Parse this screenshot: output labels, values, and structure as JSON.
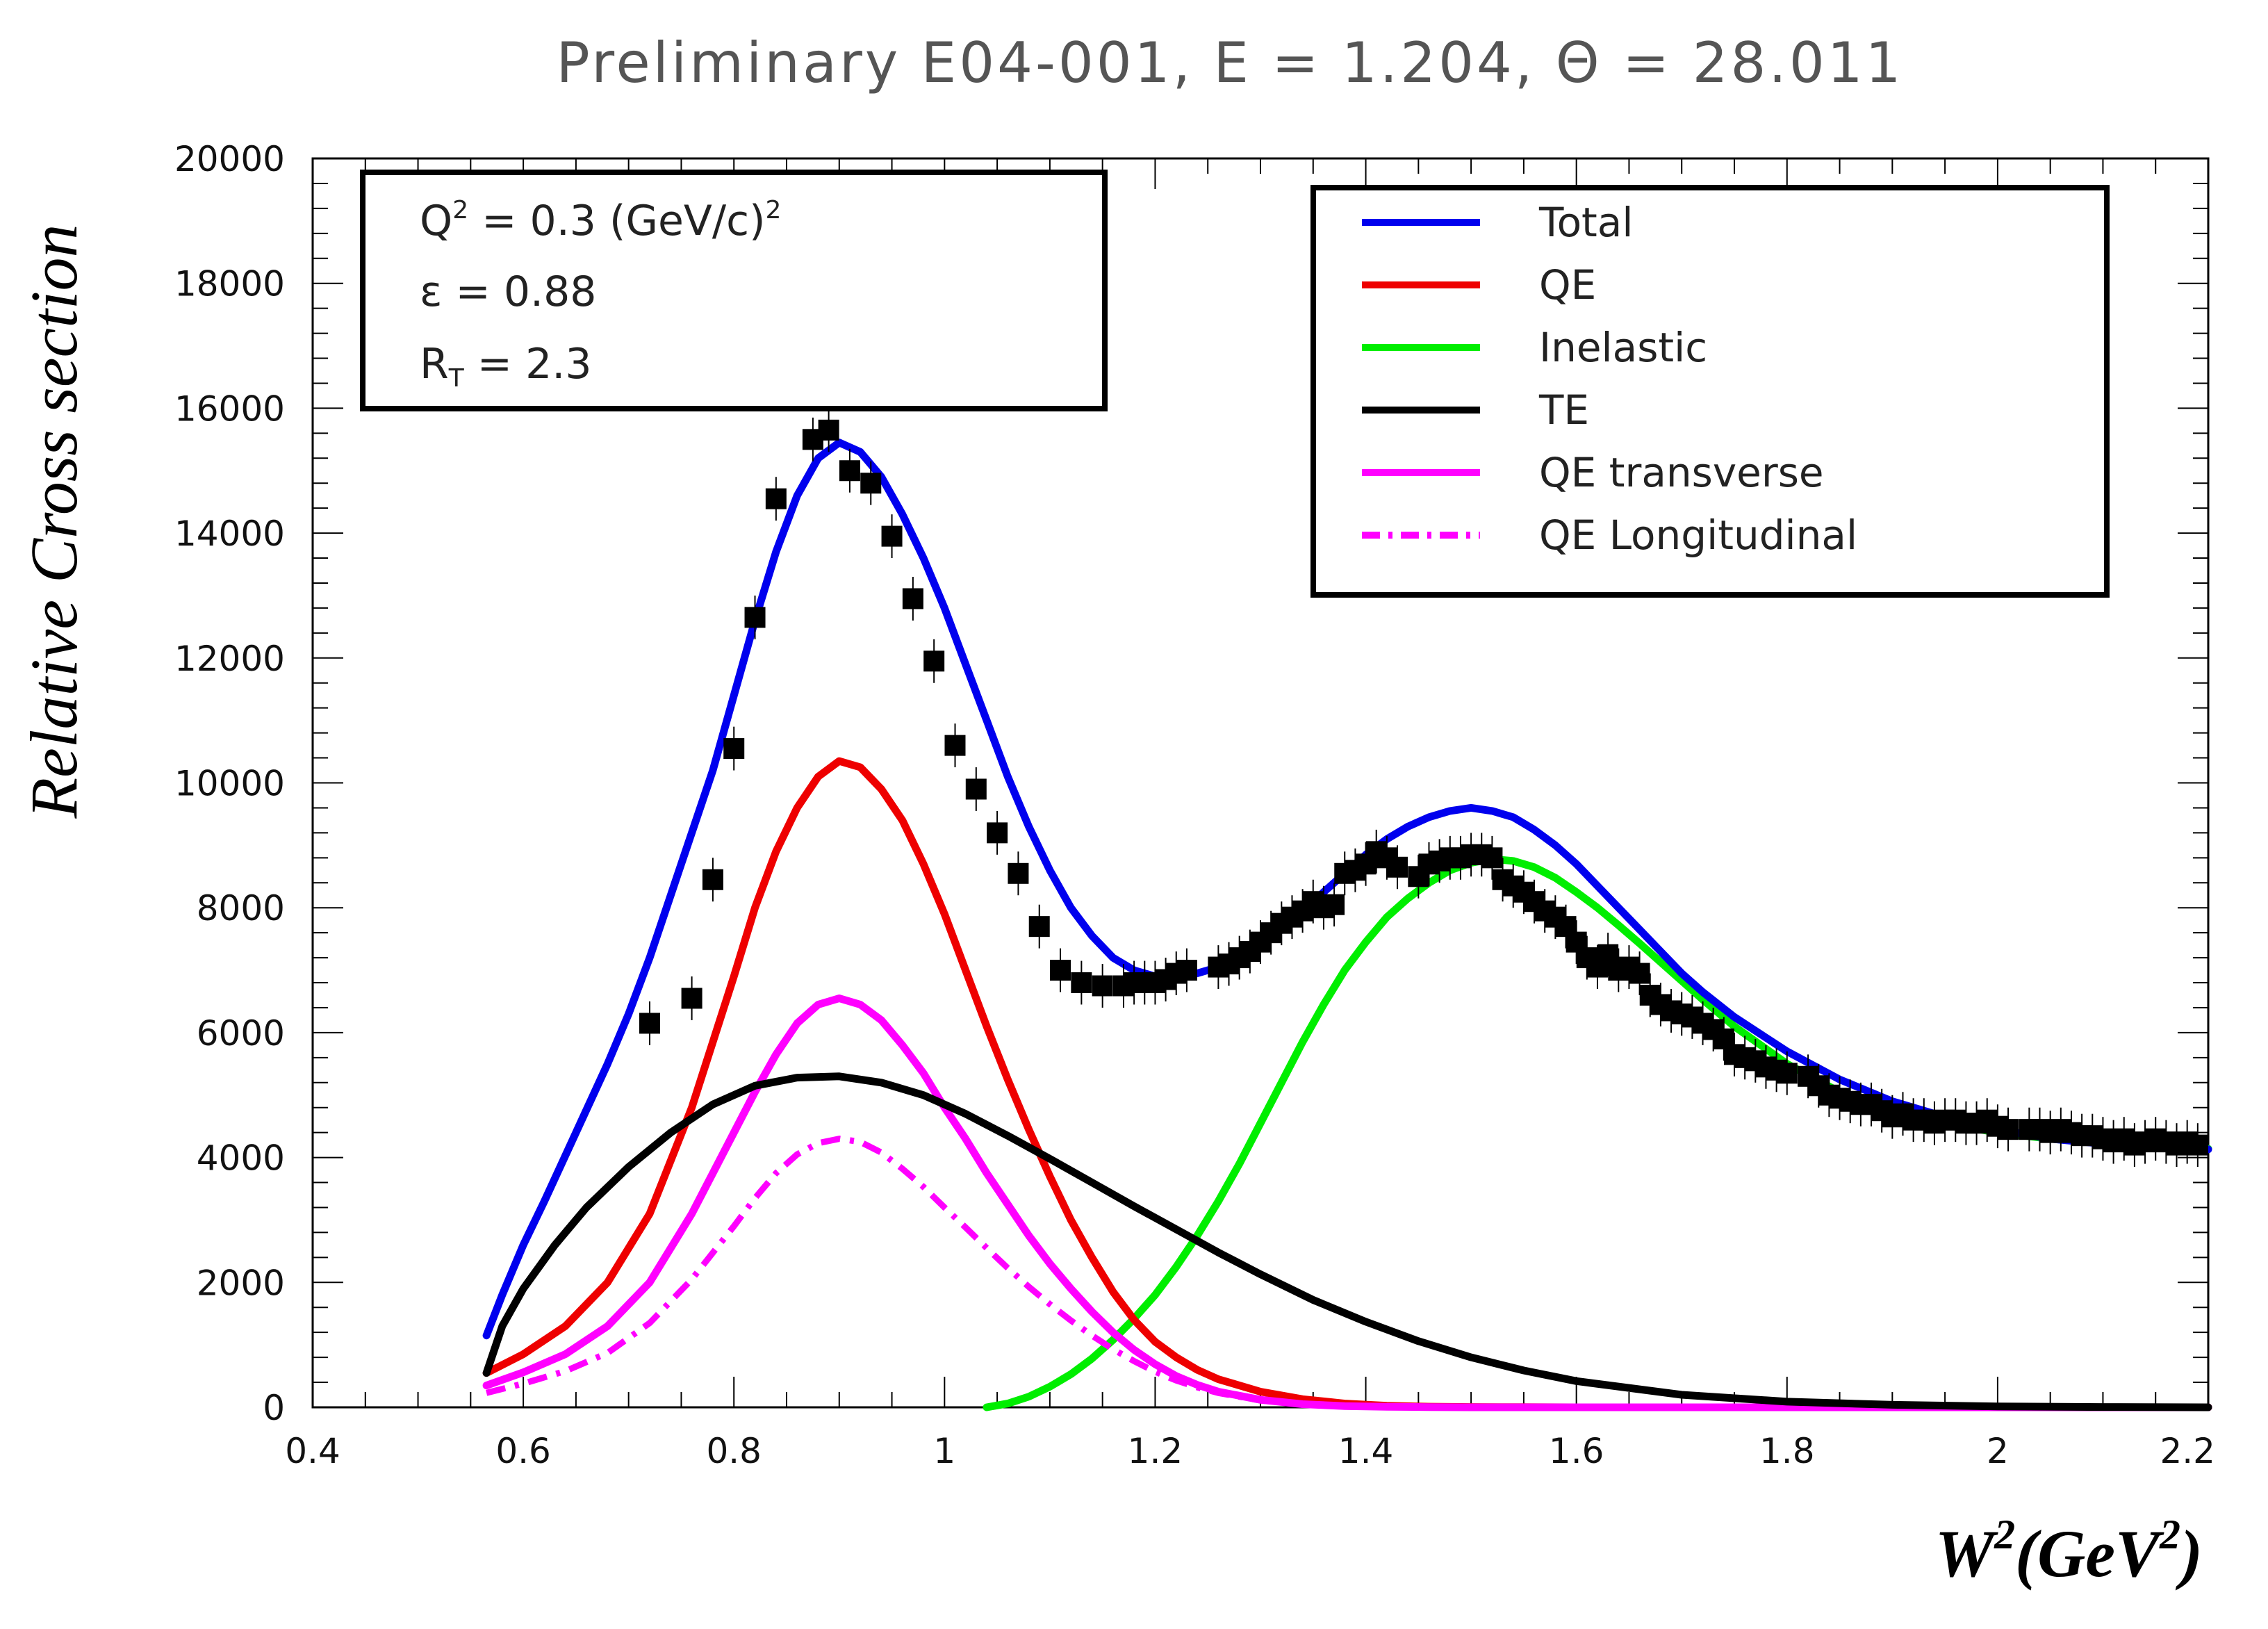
{
  "chart_data": {
    "type": "line",
    "title": "Preliminary E04-001, E = 1.204, Θ = 28.011",
    "xlabel": "W²(GeV²)",
    "xlabel_main": "W",
    "xlabel_sup1": "2",
    "xlabel_mid": "(GeV",
    "xlabel_sup2": "2",
    "xlabel_end": ")",
    "ylabel": "Relative Cross section",
    "xlim": [
      0.4,
      2.2
    ],
    "ylim": [
      0,
      20000
    ],
    "x_ticks": [
      0.4,
      0.6,
      0.8,
      1,
      1.2,
      1.4,
      1.6,
      1.8,
      2,
      2.2
    ],
    "x_tick_labels": [
      "0.4",
      "0.6",
      "0.8",
      "1",
      "1.2",
      "1.4",
      "1.6",
      "1.8",
      "2",
      "2.2"
    ],
    "y_ticks": [
      0,
      2000,
      4000,
      6000,
      8000,
      10000,
      12000,
      14000,
      16000,
      18000,
      20000
    ],
    "y_tick_labels": [
      "0",
      "2000",
      "4000",
      "6000",
      "8000",
      "10000",
      "12000",
      "14000",
      "16000",
      "18000",
      "20000"
    ],
    "grid": false,
    "legend_position": "top-right",
    "info_box": {
      "q2_label": "Q",
      "q2_sup": "2",
      "q2_value": " = 0.3 (GeV/c)",
      "q2_value_sup": "2",
      "eps_line": "ε = 0.88",
      "rt_main": "R",
      "rt_sub": "T",
      "rt_value": " = 2.3"
    },
    "series": [
      {
        "name": "Total",
        "color": "#0000ee",
        "style": "solid",
        "x": [
          0.565,
          0.58,
          0.6,
          0.62,
          0.65,
          0.68,
          0.7,
          0.72,
          0.75,
          0.78,
          0.8,
          0.82,
          0.84,
          0.86,
          0.88,
          0.9,
          0.92,
          0.94,
          0.96,
          0.98,
          1.0,
          1.02,
          1.04,
          1.06,
          1.08,
          1.1,
          1.12,
          1.14,
          1.16,
          1.18,
          1.2,
          1.22,
          1.24,
          1.26,
          1.28,
          1.3,
          1.32,
          1.34,
          1.36,
          1.38,
          1.4,
          1.42,
          1.44,
          1.46,
          1.48,
          1.5,
          1.52,
          1.54,
          1.56,
          1.58,
          1.6,
          1.62,
          1.64,
          1.66,
          1.68,
          1.7,
          1.72,
          1.75,
          1.8,
          1.85,
          1.9,
          1.95,
          2.0,
          2.05,
          2.1,
          2.15,
          2.2
        ],
        "y": [
          1150,
          1800,
          2600,
          3300,
          4400,
          5500,
          6300,
          7200,
          8700,
          10200,
          11400,
          12600,
          13700,
          14600,
          15200,
          15450,
          15300,
          14900,
          14300,
          13600,
          12800,
          11900,
          11000,
          10100,
          9300,
          8600,
          8000,
          7550,
          7200,
          7000,
          6900,
          6900,
          6950,
          7050,
          7200,
          7400,
          7650,
          7950,
          8250,
          8550,
          8850,
          9100,
          9300,
          9450,
          9550,
          9600,
          9550,
          9450,
          9250,
          9000,
          8700,
          8350,
          8000,
          7650,
          7300,
          6950,
          6650,
          6250,
          5700,
          5250,
          4900,
          4650,
          4450,
          4300,
          4220,
          4170,
          4130
        ]
      },
      {
        "name": "QE",
        "color": "#ee0000",
        "style": "solid",
        "x": [
          0.565,
          0.6,
          0.64,
          0.68,
          0.72,
          0.76,
          0.8,
          0.82,
          0.84,
          0.86,
          0.88,
          0.9,
          0.92,
          0.94,
          0.96,
          0.98,
          1.0,
          1.02,
          1.04,
          1.06,
          1.08,
          1.1,
          1.12,
          1.14,
          1.16,
          1.18,
          1.2,
          1.22,
          1.24,
          1.26,
          1.3,
          1.34,
          1.38,
          1.42,
          1.46,
          1.5,
          1.55,
          1.6,
          1.7,
          1.8,
          2.0,
          2.2
        ],
        "y": [
          550,
          850,
          1300,
          2000,
          3100,
          4800,
          6900,
          8000,
          8900,
          9600,
          10100,
          10350,
          10250,
          9900,
          9400,
          8700,
          7900,
          7000,
          6100,
          5250,
          4450,
          3700,
          3000,
          2400,
          1850,
          1400,
          1050,
          800,
          600,
          450,
          250,
          130,
          60,
          25,
          10,
          5,
          2,
          0,
          0,
          0,
          0,
          0
        ]
      },
      {
        "name": "Inelastic",
        "color": "#00ee00",
        "style": "solid",
        "x": [
          1.04,
          1.06,
          1.08,
          1.1,
          1.12,
          1.14,
          1.16,
          1.18,
          1.2,
          1.22,
          1.24,
          1.26,
          1.28,
          1.3,
          1.32,
          1.34,
          1.36,
          1.38,
          1.4,
          1.42,
          1.44,
          1.46,
          1.48,
          1.5,
          1.52,
          1.54,
          1.56,
          1.58,
          1.6,
          1.62,
          1.64,
          1.66,
          1.68,
          1.7,
          1.72,
          1.75,
          1.8,
          1.85,
          1.9,
          1.95,
          2.0,
          2.05,
          2.1,
          2.15,
          2.2
        ],
        "y": [
          0,
          60,
          170,
          330,
          530,
          780,
          1080,
          1420,
          1800,
          2250,
          2750,
          3300,
          3900,
          4550,
          5200,
          5850,
          6450,
          7000,
          7450,
          7850,
          8150,
          8400,
          8600,
          8720,
          8780,
          8750,
          8650,
          8480,
          8250,
          8000,
          7720,
          7430,
          7130,
          6830,
          6530,
          6100,
          5500,
          5050,
          4750,
          4550,
          4400,
          4300,
          4230,
          4180,
          4140
        ]
      },
      {
        "name": "TE",
        "color": "#000000",
        "style": "solid",
        "x": [
          0.565,
          0.58,
          0.6,
          0.63,
          0.66,
          0.7,
          0.74,
          0.78,
          0.82,
          0.86,
          0.9,
          0.94,
          0.98,
          1.02,
          1.06,
          1.1,
          1.14,
          1.18,
          1.22,
          1.26,
          1.3,
          1.35,
          1.4,
          1.45,
          1.5,
          1.55,
          1.6,
          1.7,
          1.8,
          1.9,
          2.0,
          2.1,
          2.2
        ],
        "y": [
          550,
          1300,
          1900,
          2600,
          3200,
          3850,
          4400,
          4850,
          5150,
          5280,
          5300,
          5200,
          5000,
          4700,
          4350,
          3980,
          3600,
          3220,
          2850,
          2480,
          2130,
          1720,
          1370,
          1060,
          800,
          590,
          420,
          200,
          90,
          40,
          15,
          5,
          0
        ]
      },
      {
        "name": "QE transverse",
        "color": "#ff00ff",
        "style": "solid",
        "x": [
          0.565,
          0.6,
          0.64,
          0.68,
          0.72,
          0.76,
          0.8,
          0.82,
          0.84,
          0.86,
          0.88,
          0.9,
          0.92,
          0.94,
          0.96,
          0.98,
          1.0,
          1.02,
          1.04,
          1.06,
          1.08,
          1.1,
          1.12,
          1.14,
          1.16,
          1.18,
          1.2,
          1.22,
          1.24,
          1.26,
          1.3,
          1.34,
          1.38,
          1.42,
          1.46,
          1.5,
          1.6,
          1.8,
          2.0,
          2.2
        ],
        "y": [
          350,
          560,
          850,
          1300,
          2000,
          3100,
          4400,
          5050,
          5650,
          6150,
          6450,
          6550,
          6450,
          6200,
          5800,
          5350,
          4800,
          4300,
          3750,
          3250,
          2750,
          2300,
          1900,
          1530,
          1200,
          920,
          690,
          500,
          360,
          250,
          120,
          50,
          20,
          8,
          3,
          0,
          0,
          0,
          0,
          0
        ]
      },
      {
        "name": "QE Longitudinal",
        "color": "#ff00ff",
        "style": "dashdot",
        "x": [
          0.565,
          0.6,
          0.64,
          0.68,
          0.72,
          0.76,
          0.8,
          0.82,
          0.84,
          0.86,
          0.88,
          0.9,
          0.92,
          0.94,
          0.96,
          0.98,
          1.0,
          1.02,
          1.04,
          1.06,
          1.08,
          1.1,
          1.12,
          1.14,
          1.16,
          1.18,
          1.2,
          1.22,
          1.24,
          1.26,
          1.3,
          1.34,
          1.38,
          1.42,
          1.46,
          1.5
        ],
        "y": [
          230,
          380,
          580,
          870,
          1350,
          2050,
          2900,
          3350,
          3750,
          4050,
          4230,
          4300,
          4250,
          4080,
          3820,
          3530,
          3200,
          2880,
          2550,
          2230,
          1930,
          1650,
          1390,
          1150,
          930,
          740,
          570,
          430,
          320,
          230,
          110,
          50,
          20,
          8,
          3,
          0
        ]
      }
    ],
    "data_points": {
      "color": "#000000",
      "x": [
        0.72,
        0.76,
        0.78,
        0.8,
        0.82,
        0.84,
        0.875,
        0.89,
        0.91,
        0.93,
        0.95,
        0.97,
        0.99,
        1.01,
        1.03,
        1.05,
        1.07,
        1.09,
        1.11,
        1.13,
        1.15,
        1.17,
        1.18,
        1.19,
        1.2,
        1.21,
        1.22,
        1.23,
        1.26,
        1.27,
        1.28,
        1.29,
        1.3,
        1.31,
        1.32,
        1.33,
        1.34,
        1.35,
        1.36,
        1.37,
        1.38,
        1.39,
        1.4,
        1.41,
        1.42,
        1.43,
        1.45,
        1.46,
        1.47,
        1.48,
        1.49,
        1.5,
        1.51,
        1.52,
        1.53,
        1.54,
        1.55,
        1.56,
        1.57,
        1.58,
        1.59,
        1.6,
        1.61,
        1.62,
        1.63,
        1.64,
        1.65,
        1.66,
        1.67,
        1.68,
        1.69,
        1.7,
        1.71,
        1.72,
        1.73,
        1.74,
        1.75,
        1.76,
        1.77,
        1.78,
        1.79,
        1.8,
        1.82,
        1.83,
        1.84,
        1.85,
        1.86,
        1.87,
        1.88,
        1.89,
        1.9,
        1.91,
        1.92,
        1.93,
        1.94,
        1.95,
        1.96,
        1.97,
        1.98,
        1.99,
        2.0,
        2.01,
        2.03,
        2.04,
        2.05,
        2.06,
        2.07,
        2.08,
        2.09,
        2.1,
        2.11,
        2.12,
        2.13,
        2.14,
        2.15,
        2.16,
        2.17,
        2.18,
        2.19
      ],
      "y": [
        6150,
        6550,
        8450,
        10550,
        12650,
        14550,
        15500,
        15650,
        15000,
        14800,
        13950,
        12950,
        11950,
        10600,
        9900,
        9200,
        8550,
        7700,
        7000,
        6800,
        6750,
        6750,
        6800,
        6800,
        6800,
        6850,
        6950,
        7000,
        7050,
        7100,
        7200,
        7300,
        7450,
        7600,
        7750,
        7850,
        7950,
        8100,
        8000,
        8050,
        8550,
        8600,
        8700,
        8900,
        8800,
        8650,
        8500,
        8700,
        8750,
        8800,
        8800,
        8850,
        8850,
        8800,
        8450,
        8350,
        8250,
        8100,
        7950,
        7850,
        7700,
        7450,
        7200,
        7050,
        7250,
        7000,
        7050,
        6950,
        6600,
        6450,
        6350,
        6300,
        6250,
        6150,
        6050,
        5900,
        5650,
        5600,
        5550,
        5450,
        5400,
        5350,
        5300,
        5150,
        5000,
        4950,
        4900,
        4850,
        4850,
        4750,
        4650,
        4700,
        4600,
        4600,
        4550,
        4600,
        4600,
        4550,
        4550,
        4600,
        4500,
        4450,
        4450,
        4450,
        4400,
        4450,
        4400,
        4350,
        4350,
        4300,
        4250,
        4300,
        4200,
        4250,
        4300,
        4250,
        4200,
        4250,
        4200
      ],
      "err": 350
    }
  }
}
